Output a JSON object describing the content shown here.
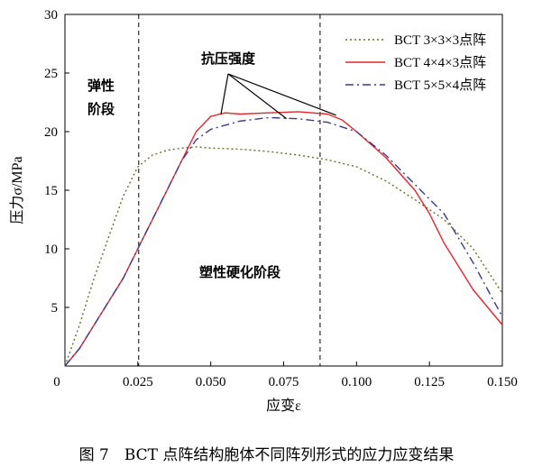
{
  "caption": "图 7　BCT 点阵结构胞体不同阵列形式的应力应变结果",
  "chart_data": {
    "type": "line",
    "xlabel": "应变ε",
    "ylabel": "压力σ/MPa",
    "xlim": [
      0,
      0.15
    ],
    "ylim": [
      0,
      30
    ],
    "xticks": [
      0.025,
      0.05,
      0.075,
      0.1,
      0.125,
      0.15
    ],
    "xtick_labels": [
      "0.025",
      "0.050",
      "0.075",
      "0.100",
      "0.125",
      "0.150"
    ],
    "yticks": [
      0,
      5,
      10,
      15,
      20,
      25,
      30
    ],
    "ytick_labels": [
      "0",
      "5",
      "10",
      "15",
      "20",
      "25",
      "30"
    ],
    "origin_label": "0",
    "grid": false,
    "legend_position": "top-right",
    "series": [
      {
        "name": "BCT 3×3×3点阵",
        "color": "#6b6b24",
        "style": "dotted",
        "x": [
          0,
          0.005,
          0.01,
          0.015,
          0.02,
          0.025,
          0.03,
          0.035,
          0.04,
          0.045,
          0.05,
          0.06,
          0.07,
          0.08,
          0.09,
          0.1,
          0.11,
          0.12,
          0.13,
          0.14,
          0.15
        ],
        "y": [
          0,
          3.5,
          7.5,
          11.0,
          14.5,
          17.0,
          18.0,
          18.4,
          18.6,
          18.7,
          18.6,
          18.5,
          18.3,
          18.0,
          17.6,
          17.0,
          15.8,
          14.2,
          12.5,
          10.0,
          6.2
        ]
      },
      {
        "name": "BCT 4×4×3点阵",
        "color": "#e8262b",
        "style": "solid",
        "x": [
          0,
          0.005,
          0.01,
          0.015,
          0.02,
          0.025,
          0.03,
          0.035,
          0.04,
          0.045,
          0.05,
          0.055,
          0.06,
          0.07,
          0.08,
          0.09,
          0.095,
          0.1,
          0.11,
          0.12,
          0.125,
          0.13,
          0.14,
          0.15
        ],
        "y": [
          0,
          1.5,
          3.5,
          5.5,
          7.5,
          10.0,
          12.5,
          15.0,
          17.5,
          20.0,
          21.3,
          21.6,
          21.5,
          21.6,
          21.7,
          21.5,
          21.0,
          20.0,
          17.8,
          15.0,
          13.0,
          10.5,
          6.5,
          3.5
        ]
      },
      {
        "name": "BCT 5×5×4点阵",
        "color": "#3a3a8c",
        "style": "dashdot",
        "x": [
          0,
          0.005,
          0.01,
          0.015,
          0.02,
          0.025,
          0.03,
          0.035,
          0.04,
          0.045,
          0.05,
          0.06,
          0.07,
          0.08,
          0.09,
          0.1,
          0.11,
          0.12,
          0.13,
          0.14,
          0.15
        ],
        "y": [
          0,
          1.5,
          3.5,
          5.5,
          7.5,
          10.0,
          12.5,
          15.0,
          17.5,
          19.3,
          20.2,
          20.9,
          21.2,
          21.1,
          20.8,
          20.0,
          18.0,
          15.5,
          13.0,
          8.8,
          4.2
        ]
      }
    ],
    "vlines": [
      0.0253,
      0.0875
    ],
    "annotations": {
      "elastic": [
        "弹性",
        "阶段"
      ],
      "peak": "抗压强度",
      "hardening": "塑性硬化阶段"
    }
  }
}
